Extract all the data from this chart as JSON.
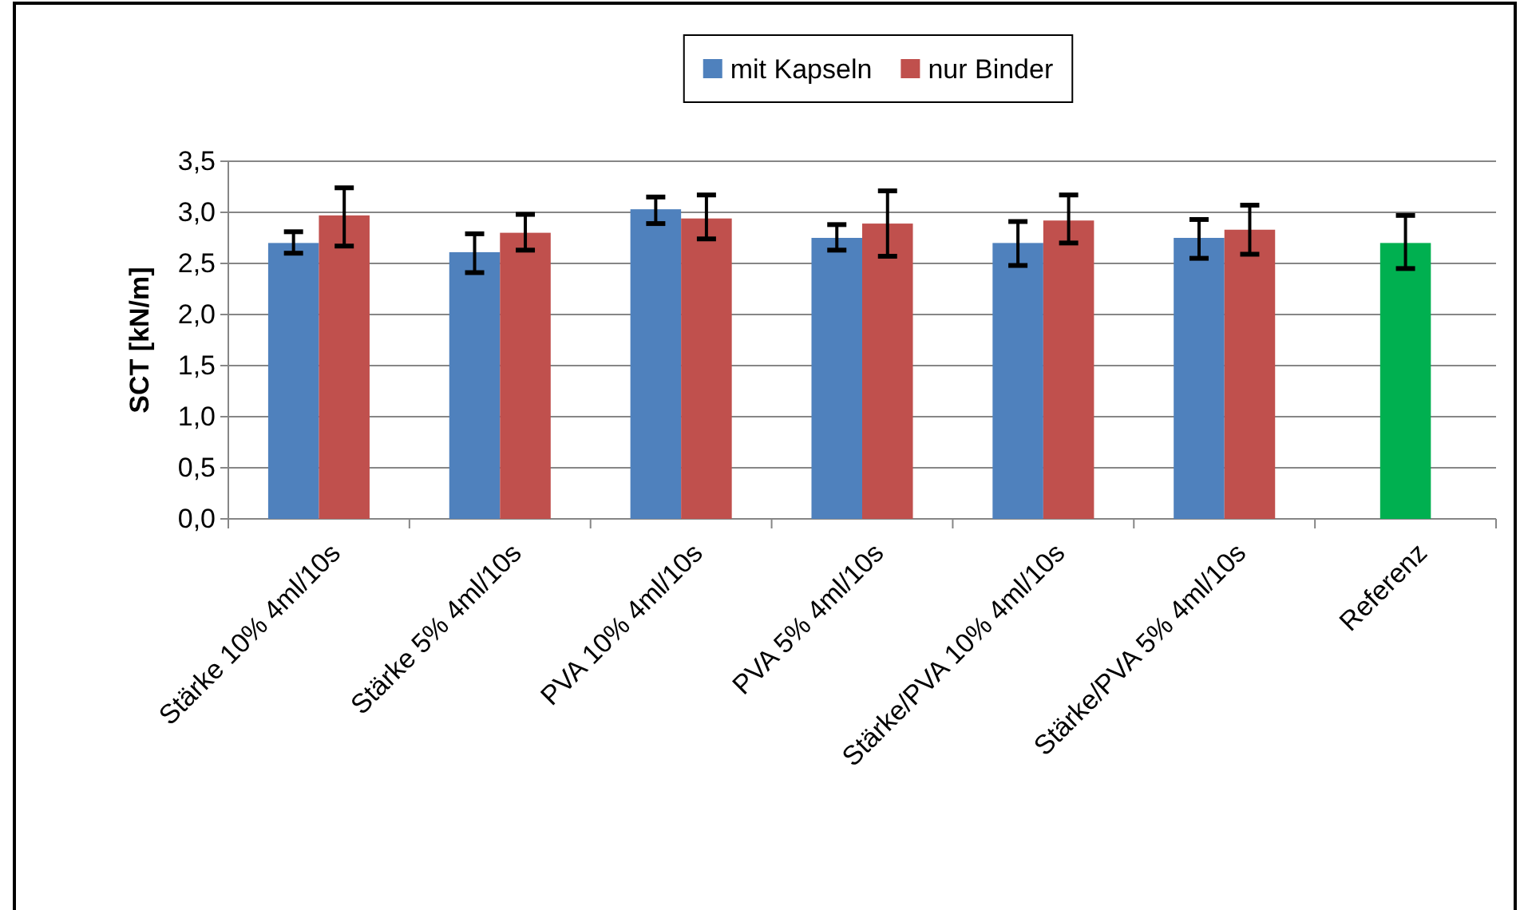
{
  "chart_data": {
    "type": "bar",
    "ylabel": "SCT [kN/m]",
    "categories": [
      "Stärke 10% 4ml/10s",
      "Stärke 5% 4ml/10s",
      "PVA 10% 4ml/10s",
      "PVA 5% 4ml/10s",
      "Stärke/PVA 10% 4ml/10s",
      "Stärke/PVA 5% 4ml/10s",
      "Referenz"
    ],
    "series": [
      {
        "name": "mit Kapseln",
        "color": "#4f81bd",
        "colors": [
          "#4f81bd",
          "#4f81bd",
          "#4f81bd",
          "#4f81bd",
          "#4f81bd",
          "#4f81bd",
          "#00b050"
        ],
        "values": [
          2.7,
          2.61,
          3.03,
          2.75,
          2.7,
          2.75,
          2.7
        ],
        "errors": [
          [
            2.6,
            2.81
          ],
          [
            2.41,
            2.79
          ],
          [
            2.89,
            3.15
          ],
          [
            2.63,
            2.88
          ],
          [
            2.48,
            2.91
          ],
          [
            2.55,
            2.93
          ],
          [
            2.45,
            2.97
          ]
        ]
      },
      {
        "name": "nur Binder",
        "color": "#c0504d",
        "values": [
          2.97,
          2.8,
          2.94,
          2.89,
          2.92,
          2.83,
          null
        ],
        "errors": [
          [
            2.67,
            3.24
          ],
          [
            2.63,
            2.98
          ],
          [
            2.74,
            3.17
          ],
          [
            2.57,
            3.21
          ],
          [
            2.7,
            3.17
          ],
          [
            2.59,
            3.07
          ],
          null
        ]
      }
    ],
    "ylim": [
      0,
      3.5
    ],
    "yticks": [
      {
        "value": 0,
        "label": "0,0"
      },
      {
        "value": 0.5,
        "label": "0,5"
      },
      {
        "value": 1,
        "label": "1,0"
      },
      {
        "value": 1.5,
        "label": "1,5"
      },
      {
        "value": 2,
        "label": "2,0"
      },
      {
        "value": 2.5,
        "label": "2,5"
      },
      {
        "value": 3,
        "label": "3,0"
      },
      {
        "value": 3.5,
        "label": "3,5"
      }
    ],
    "grid": "y",
    "legend": "top"
  }
}
